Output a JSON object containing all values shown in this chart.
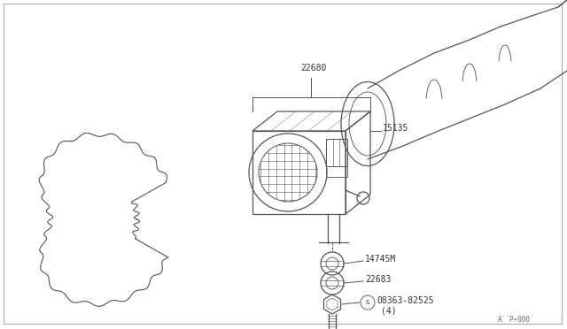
{
  "background_color": "#ffffff",
  "line_color": "#555555",
  "label_color": "#333333",
  "fig_width": 6.4,
  "fig_height": 3.72,
  "dpi": 100,
  "footnote_text": "A´´P∗000´"
}
